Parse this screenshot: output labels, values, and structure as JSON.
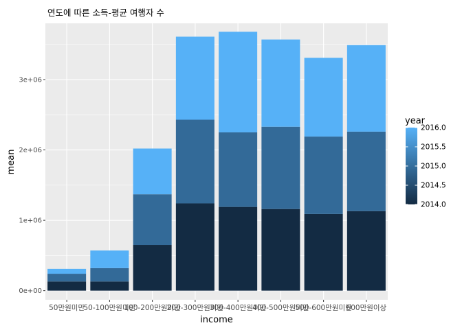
{
  "chart_data": {
    "type": "bar",
    "stacked": true,
    "title": "연도에 따른 소득-평균 여행자 수",
    "xlabel": "income",
    "ylabel": "mean",
    "categories": [
      "50만원미만",
      "50-100만원미만",
      "100-200만원미만",
      "200-300만원미만",
      "300-400만원미만",
      "400-500만원미만",
      "500-600만원미만",
      "600만원이상"
    ],
    "series": [
      {
        "name": "2014",
        "color": "#132b43",
        "values": [
          130000,
          130000,
          650000,
          1240000,
          1190000,
          1160000,
          1090000,
          1130000
        ]
      },
      {
        "name": "2015",
        "color": "#336a98",
        "values": [
          110000,
          190000,
          720000,
          1190000,
          1060000,
          1170000,
          1100000,
          1130000
        ]
      },
      {
        "name": "2016",
        "color": "#56b1f7",
        "values": [
          70000,
          250000,
          650000,
          1180000,
          1430000,
          1240000,
          1120000,
          1230000
        ]
      }
    ],
    "ylim": [
      -130000,
      3800000
    ],
    "yticks": [
      0,
      1000000,
      2000000,
      3000000
    ],
    "ytick_labels": [
      "0e+00",
      "1e+06",
      "2e+06",
      "3e+06"
    ],
    "grid": true,
    "legend": {
      "title": "year",
      "type": "continuous",
      "position": "right",
      "range": [
        2014.0,
        2016.0
      ],
      "low_color": "#132b43",
      "high_color": "#56b1f7",
      "ticks": [
        2014.0,
        2014.5,
        2015.0,
        2015.5,
        2016.0
      ],
      "tick_labels": [
        "2014.0",
        "2014.5",
        "2015.0",
        "2015.5",
        "2016.0"
      ]
    }
  }
}
